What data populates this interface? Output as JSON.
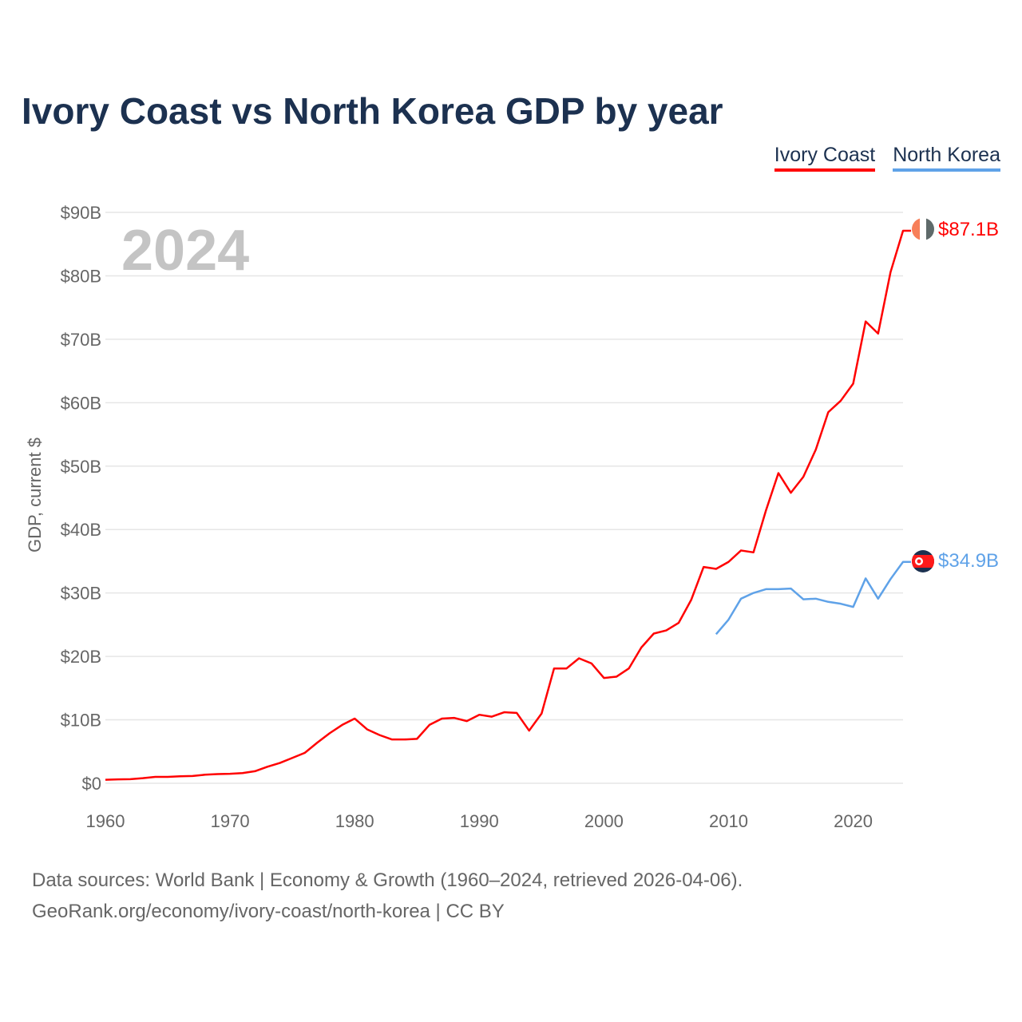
{
  "chart_data": {
    "type": "line",
    "title": "Ivory Coast vs North Korea GDP by year",
    "ylabel": "GDP, current $",
    "xlabel": "",
    "xlim": [
      1960,
      2024
    ],
    "ylim": [
      0,
      90
    ],
    "x_ticks": [
      1960,
      1970,
      1980,
      1990,
      2000,
      2010,
      2020
    ],
    "x_tick_labels": [
      "1960",
      "1970",
      "1980",
      "1990",
      "2000",
      "2010",
      "2020"
    ],
    "y_ticks": [
      0,
      10,
      20,
      30,
      40,
      50,
      60,
      70,
      80,
      90
    ],
    "y_tick_labels": [
      "$0",
      "$10B",
      "$20B",
      "$30B",
      "$40B",
      "$50B",
      "$60B",
      "$70B",
      "$80B",
      "$90B"
    ],
    "grid": true,
    "legend_position": "top-right",
    "year_label": "2024",
    "series": [
      {
        "name": "Ivory Coast",
        "color": "#ff0000",
        "end_label": "$87.1B",
        "start_year": 1960,
        "values": [
          0.55,
          0.62,
          0.65,
          0.8,
          1.0,
          1.0,
          1.1,
          1.15,
          1.35,
          1.45,
          1.5,
          1.6,
          1.9,
          2.6,
          3.2,
          4.0,
          4.8,
          6.4,
          7.9,
          9.2,
          10.2,
          8.5,
          7.6,
          6.9,
          6.9,
          7.0,
          9.2,
          10.2,
          10.3,
          9.8,
          10.8,
          10.5,
          11.2,
          11.1,
          8.3,
          11.0,
          18.1,
          18.1,
          19.7,
          18.9,
          16.6,
          16.8,
          18.1,
          21.4,
          23.6,
          24.1,
          25.3,
          28.9,
          34.1,
          33.8,
          34.9,
          36.7,
          36.4,
          43.0,
          48.9,
          45.8,
          48.3,
          52.6,
          58.5,
          60.3,
          63.0,
          72.8,
          70.9,
          80.6,
          87.1
        ]
      },
      {
        "name": "North Korea",
        "color": "#5fa2e8",
        "end_label": "$34.9B",
        "start_year": 2009,
        "values": [
          23.5,
          25.8,
          29.1,
          30.0,
          30.6,
          30.6,
          30.7,
          29.0,
          29.1,
          28.6,
          28.3,
          27.8,
          32.3,
          29.1,
          32.2,
          34.9
        ]
      }
    ]
  },
  "footer": {
    "line1": "Data sources: World Bank | Economy & Growth (1960–2024, retrieved 2026-04-06).",
    "line2": "GeoRank.org/economy/ivory-coast/north-korea | CC BY"
  }
}
